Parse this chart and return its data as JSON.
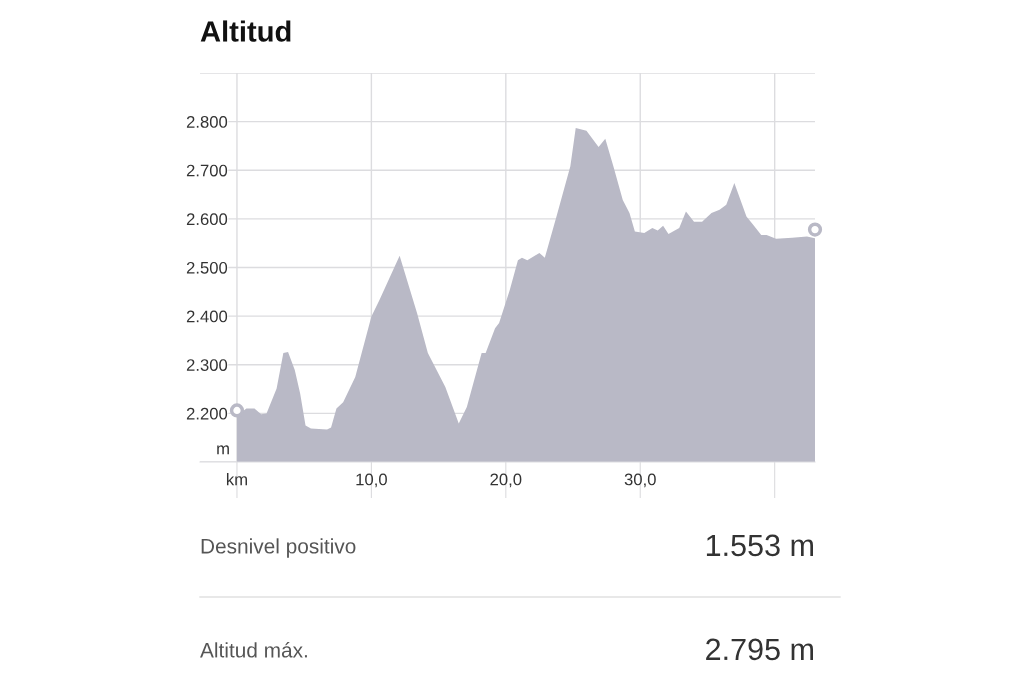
{
  "chart_data": {
    "type": "area",
    "title": "Altitud",
    "ylabel": "m",
    "x": [
      0,
      0.7,
      1.3,
      1.8,
      2.2,
      2.95,
      3.45,
      3.8,
      4.3,
      4.7,
      5.1,
      5.5,
      6.7,
      7.0,
      7.4,
      7.9,
      8.8,
      10.0,
      10.6,
      12.1,
      13.4,
      14.2,
      15.5,
      16.5,
      17.1,
      18.2,
      18.5,
      19.2,
      19.5,
      20.3,
      20.9,
      21.2,
      21.6,
      22.5,
      22.9,
      23.8,
      24.8,
      25.2,
      26.0,
      26.9,
      27.4,
      28.0,
      28.7,
      29.2,
      29.6,
      30.3,
      30.9,
      31.3,
      31.7,
      32.1,
      32.9,
      33.4,
      34.0,
      34.6,
      35.3,
      35.9,
      36.4,
      37.0,
      37.9,
      38.4,
      39.0,
      39.4,
      40.1,
      41.3,
      42.4,
      43.0
    ],
    "series": [
      {
        "color": "#b9b9c6",
        "values": [
          2195,
          2210,
          2210,
          2198,
          2200,
          2251,
          2324,
          2326,
          2289,
          2241,
          2175,
          2169,
          2167,
          2171,
          2210,
          2223,
          2275,
          2399,
          2433,
          2524,
          2406,
          2324,
          2254,
          2179,
          2213,
          2324,
          2324,
          2375,
          2386,
          2454,
          2515,
          2520,
          2515,
          2530,
          2520,
          2608,
          2708,
          2787,
          2781,
          2748,
          2765,
          2708,
          2639,
          2612,
          2574,
          2571,
          2581,
          2576,
          2586,
          2569,
          2581,
          2615,
          2594,
          2594,
          2612,
          2619,
          2629,
          2674,
          2605,
          2588,
          2567,
          2567,
          2559,
          2561,
          2564,
          2560
        ]
      },
      {
        "type": "scatter",
        "color": "#b9b9c6",
        "x": [
          0,
          43.0
        ],
        "values": [
          2206,
          2578
        ]
      }
    ],
    "xlim": [
      -2.75,
      43.0
    ],
    "ylim": [
      2100,
      2900
    ],
    "xticks": [
      {
        "value": 0,
        "label": "km"
      },
      {
        "value": 10,
        "label": "10,0"
      },
      {
        "value": 20,
        "label": "20,0"
      },
      {
        "value": 30,
        "label": "30,0"
      },
      {
        "value": 40,
        "label": null
      }
    ],
    "yticks": [
      {
        "value": 2100,
        "label": null
      },
      {
        "value": 2200,
        "label": "2.200"
      },
      {
        "value": 2300,
        "label": "2.300"
      },
      {
        "value": 2400,
        "label": "2.400"
      },
      {
        "value": 2500,
        "label": "2.500"
      },
      {
        "value": 2600,
        "label": "2.600"
      },
      {
        "value": 2700,
        "label": "2.700"
      },
      {
        "value": 2800,
        "label": "2.800"
      },
      {
        "value": 2900,
        "label": null
      }
    ],
    "grid": true,
    "annotations": [
      "Desnivel positivo",
      "1.553 m",
      "Altitud máx.",
      "2.795 m"
    ]
  }
}
